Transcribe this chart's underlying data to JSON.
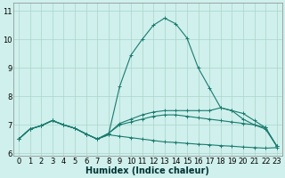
{
  "xlabel": "Humidex (Indice chaleur)",
  "xlim": [
    -0.5,
    23.5
  ],
  "ylim": [
    5.9,
    11.3
  ],
  "xticks": [
    0,
    1,
    2,
    3,
    4,
    5,
    6,
    7,
    8,
    9,
    10,
    11,
    12,
    13,
    14,
    15,
    16,
    17,
    18,
    19,
    20,
    21,
    22,
    23
  ],
  "yticks": [
    6,
    7,
    8,
    9,
    10,
    11
  ],
  "bg_color": "#cff0ec",
  "grid_color": "#aad4cc",
  "line_color": "#1a7a6e",
  "lines": [
    [
      6.5,
      6.85,
      6.97,
      7.15,
      7.0,
      6.88,
      6.68,
      6.5,
      6.65,
      8.35,
      9.45,
      10.0,
      10.5,
      10.75,
      10.55,
      10.05,
      9.0,
      8.3,
      7.6,
      7.5,
      7.2,
      7.0,
      6.85,
      6.25
    ],
    [
      6.5,
      6.85,
      6.97,
      7.15,
      7.0,
      6.88,
      6.68,
      6.5,
      6.7,
      7.05,
      7.2,
      7.35,
      7.45,
      7.5,
      7.5,
      7.5,
      7.5,
      7.5,
      7.6,
      7.5,
      7.4,
      7.15,
      6.9,
      6.25
    ],
    [
      6.5,
      6.85,
      6.97,
      7.15,
      7.0,
      6.88,
      6.68,
      6.5,
      6.7,
      7.0,
      7.1,
      7.2,
      7.3,
      7.35,
      7.35,
      7.3,
      7.25,
      7.2,
      7.15,
      7.1,
      7.05,
      7.0,
      6.9,
      6.25
    ],
    [
      6.5,
      6.85,
      6.97,
      7.15,
      7.0,
      6.88,
      6.68,
      6.5,
      6.65,
      6.6,
      6.55,
      6.5,
      6.45,
      6.4,
      6.38,
      6.35,
      6.32,
      6.3,
      6.27,
      6.25,
      6.22,
      6.2,
      6.18,
      6.2
    ]
  ],
  "fontsize_xlabel": 7,
  "fontsize_tick": 6,
  "fig_bg": "#cff0ec",
  "linewidth": 0.8,
  "markersize": 2.5,
  "markeredgewidth": 0.7
}
